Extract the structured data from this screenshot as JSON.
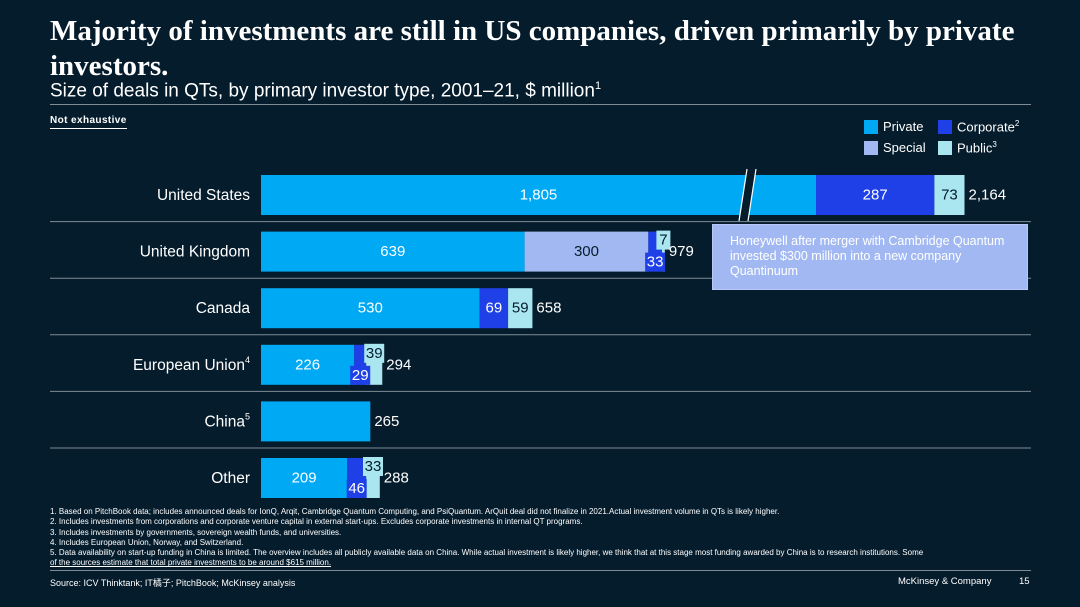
{
  "title": "Majority of investments are still in US companies, driven primarily by private investors.",
  "subtitle": "Size of deals in QTs, by primary investor type, 2001–21, $ million",
  "subtitle_sup": "1",
  "note": "Not exhaustive",
  "legend": {
    "private": "Private",
    "corporate": "Corporate",
    "corporate_sup": "2",
    "special": "Special",
    "public": "Public",
    "public_sup": "3"
  },
  "colors": {
    "background": "#051c2c",
    "private": "#00a9f4",
    "corporate": "#1f40e6",
    "special": "#a2b8f2",
    "public": "#aae6f0"
  },
  "callout": "Honeywell after merger with Cambridge Quantum invested $300 million into a new company Quantinuum",
  "chart_data": {
    "type": "bar",
    "orientation": "horizontal",
    "stacked": true,
    "axis_break_on": "United States",
    "categories": [
      "United States",
      "United Kingdom",
      "Canada",
      "European Union",
      "China",
      "Other"
    ],
    "category_sups": [
      "",
      "",
      "",
      "4",
      "5",
      ""
    ],
    "series": [
      {
        "name": "Private",
        "values": [
          1805,
          639,
          530,
          226,
          265,
          209
        ]
      },
      {
        "name": "Special",
        "values": [
          0,
          300,
          0,
          0,
          0,
          0
        ]
      },
      {
        "name": "Corporate",
        "values": [
          287,
          33,
          69,
          29,
          0,
          46
        ]
      },
      {
        "name": "Public",
        "values": [
          73,
          7,
          59,
          39,
          0,
          33
        ]
      }
    ],
    "totals": [
      "2,164",
      "979",
      "658",
      "294",
      "265",
      "288"
    ],
    "value_labels": [
      [
        "1,805",
        "",
        "287",
        "73"
      ],
      [
        "639",
        "300",
        "33",
        "7"
      ],
      [
        "530",
        "",
        "69",
        "59"
      ],
      [
        "226",
        "",
        "29",
        "39"
      ],
      [
        "",
        "",
        "",
        ""
      ],
      [
        "209",
        "",
        "46",
        "33"
      ]
    ]
  },
  "footnotes": [
    "1. Based on PitchBook data; includes announced deals for IonQ, Arqit, Cambridge Quantum Computing, and PsiQuantum. ArQuit deal did not finalize in 2021.Actual investment volume in QTs is likely higher.",
    "2. Includes investments from corporations and corporate venture capital in external start-ups. Excludes corporate investments in internal QT programs.",
    "3. Includes investments by governments, sovereign wealth funds, and universities.",
    "4. Includes European Union, Norway, and Switzerland.",
    "5. Data availability on start-up funding in China is limited. The overview includes all publicly available data on China. While actual investment is likely higher, we think that at this stage most funding awarded by China is to research institutions. Some",
    "of the sources estimate that total private investments to be around $615 million."
  ],
  "source": "Source:  ICV Thinktank; IT橘子; PitchBook; McKinsey analysis",
  "brand": "McKinsey & Company",
  "page_number": "15"
}
